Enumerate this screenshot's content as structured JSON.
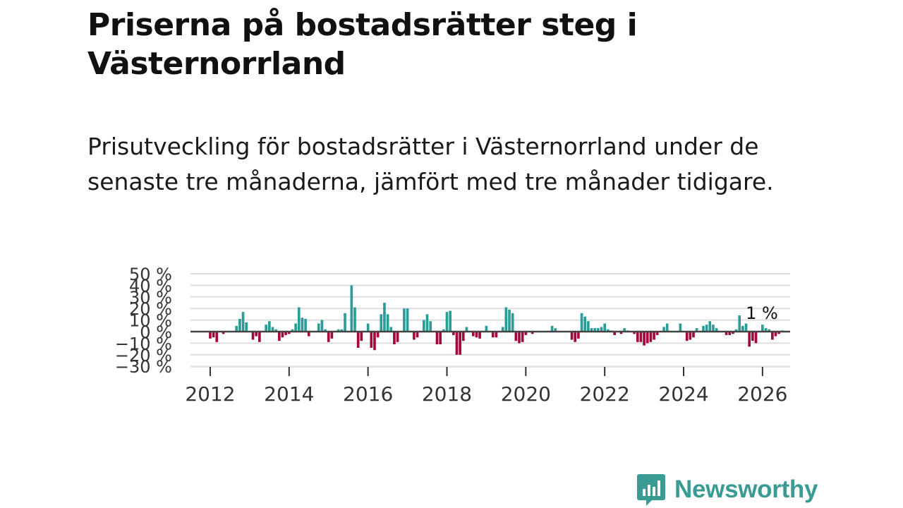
{
  "header": {
    "title": "Priserna på bostadsrätter steg i Västernorrland",
    "subtitle": "Prisutveckling för bostadsrätter i Västernorrland under de senaste tre månaderna, jämfört med tre månader tidigare."
  },
  "brand": {
    "name": "Newsworthy",
    "color": "#3a9b94"
  },
  "chart_data": {
    "type": "bar",
    "title": "",
    "xlabel": "",
    "ylabel": "",
    "unit": "%",
    "ylim": [
      -30,
      50
    ],
    "ytick_labels": [
      "50 %",
      "40 %",
      "30 %",
      "20 %",
      "10 %",
      "0 %",
      "−10 %",
      "−20 %",
      "−30 %"
    ],
    "ytick_values": [
      50,
      40,
      30,
      20,
      10,
      0,
      -10,
      -20,
      -30
    ],
    "xlim": [
      2011.5,
      2026.7
    ],
    "xtick_labels": [
      "2012",
      "2014",
      "2016",
      "2018",
      "2020",
      "2022",
      "2024",
      "2026"
    ],
    "xtick_values": [
      2012,
      2014,
      2016,
      2018,
      2020,
      2022,
      2024,
      2026
    ],
    "colors": {
      "positive": "#2a9d96",
      "negative": "#a1093d",
      "zero_line": "#444444",
      "grid": "#dddddd"
    },
    "last_value_label": "1 %",
    "start": "2011-12",
    "series": [
      {
        "name": "Prisutveckling",
        "values": [
          0,
          -6,
          -5,
          -9,
          0,
          -2,
          0,
          0,
          0,
          5,
          11,
          17,
          8,
          0,
          -7,
          -4,
          -9,
          0,
          6,
          9,
          4,
          2,
          -8,
          -5,
          -3,
          -2,
          2,
          7,
          21,
          12,
          11,
          -4,
          0,
          0,
          7,
          10,
          2,
          -9,
          -6,
          0,
          2,
          2,
          16,
          0,
          40,
          21,
          -14,
          -8,
          0,
          7,
          -14,
          -16,
          -5,
          15,
          25,
          15,
          4,
          -11,
          -9,
          0,
          20,
          20,
          0,
          -7,
          -5,
          0,
          10,
          15,
          9,
          0,
          -11,
          -11,
          2,
          17,
          18,
          -3,
          -20,
          -20,
          -8,
          4,
          0,
          -4,
          -5,
          -6,
          0,
          5,
          0,
          -5,
          -5,
          0,
          4,
          21,
          19,
          16,
          -8,
          -10,
          -9,
          -3,
          0,
          -2,
          0,
          0,
          0,
          0,
          0,
          5,
          3,
          0,
          0,
          0,
          0,
          -7,
          -9,
          -6,
          16,
          13,
          9,
          3,
          3,
          3,
          4,
          7,
          2,
          1,
          -3,
          0,
          -2,
          3,
          1,
          0,
          -2,
          -9,
          -9,
          -12,
          -10,
          -9,
          -7,
          -3,
          0,
          4,
          7,
          0,
          0,
          0,
          7,
          0,
          -8,
          -7,
          -5,
          3,
          0,
          5,
          6,
          9,
          6,
          3,
          0,
          0,
          -3,
          -3,
          -2,
          2,
          14,
          5,
          7,
          -13,
          -8,
          -10,
          0,
          6,
          3,
          2,
          -7,
          -4,
          -2,
          1
        ]
      }
    ]
  }
}
